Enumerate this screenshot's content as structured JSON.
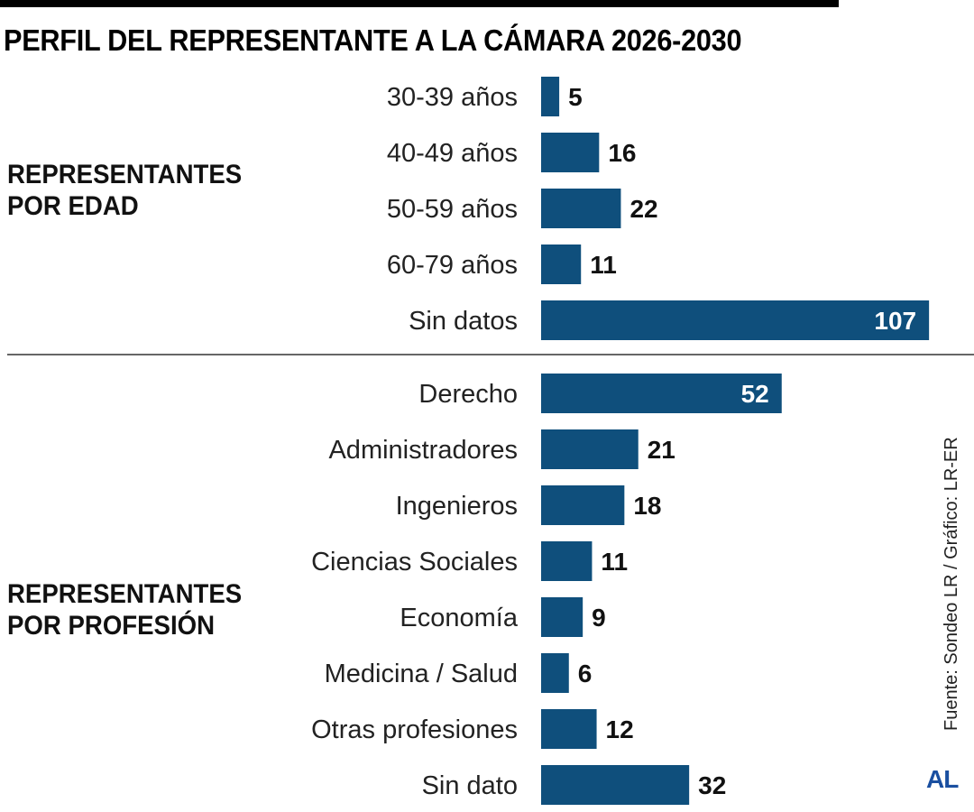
{
  "title": "PERFIL DEL REPRESENTANTE A LA CÁMARA 2026-2030",
  "source": "Fuente: Sondeo LR / Gráfico: LR-ER",
  "logo": "AL",
  "chart_data": [
    {
      "type": "bar",
      "orientation": "horizontal",
      "title": "REPRESENTANTES POR EDAD",
      "title_lines": [
        "REPRESENTANTES",
        "POR EDAD"
      ],
      "categories": [
        "30-39 años",
        "40-49 años",
        "50-59 años",
        "60-79 años",
        "Sin datos"
      ],
      "values": [
        5,
        16,
        22,
        11,
        107
      ],
      "color": "#0f4f7c",
      "grid": false
    },
    {
      "type": "bar",
      "orientation": "horizontal",
      "title": "REPRESENTANTES POR PROFESIÓN",
      "title_lines": [
        "REPRESENTANTES",
        "POR PROFESIÓN"
      ],
      "categories": [
        "Derecho",
        "Administradores",
        "Ingenieros",
        "Ciencias Sociales",
        "Economía",
        "Medicina / Salud",
        "Otras profesiones",
        "Sin dato"
      ],
      "values": [
        52,
        21,
        18,
        11,
        9,
        6,
        12,
        32
      ],
      "color": "#0f4f7c",
      "grid": false
    }
  ]
}
